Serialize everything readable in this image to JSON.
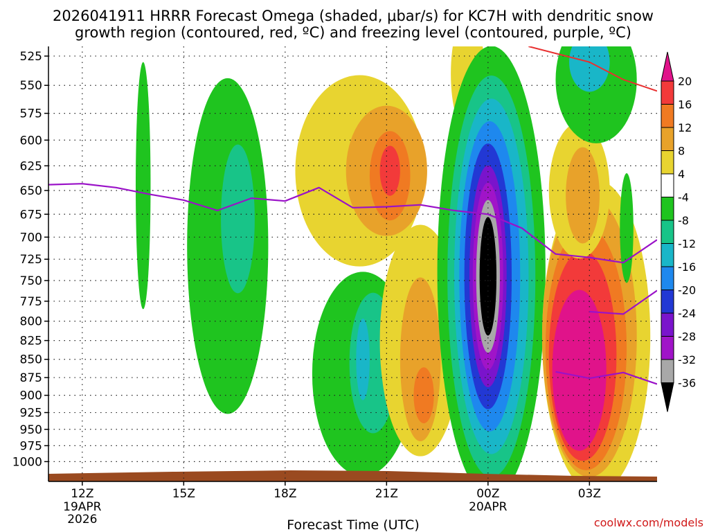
{
  "chart_data": {
    "type": "heatmap",
    "title_line1": "2026041911 HRRR Forecast Omega (shaded, μbar/s) for KC7H with dendritic snow",
    "title_line2": "growth region (contoured, red, ºC) and freezing level (contoured, purple, ºC)",
    "xlabel": "Forecast Time (UTC)",
    "credit": "coolwx.com/models",
    "y_ticks": [
      "525",
      "550",
      "575",
      "600",
      "625",
      "650",
      "675",
      "700",
      "725",
      "750",
      "775",
      "800",
      "825",
      "850",
      "875",
      "900",
      "925",
      "950",
      "975",
      "1000"
    ],
    "y_values": [
      525,
      550,
      575,
      600,
      625,
      650,
      675,
      700,
      725,
      750,
      775,
      800,
      825,
      850,
      875,
      900,
      925,
      950,
      975,
      1000
    ],
    "x_ticks": [
      {
        "hour": 0,
        "label": "12Z",
        "sub1": "19APR",
        "sub2": "2026"
      },
      {
        "hour": 3,
        "label": "15Z",
        "sub1": "",
        "sub2": ""
      },
      {
        "hour": 6,
        "label": "18Z",
        "sub1": "",
        "sub2": ""
      },
      {
        "hour": 9,
        "label": "21Z",
        "sub1": "",
        "sub2": ""
      },
      {
        "hour": 12,
        "label": "00Z",
        "sub1": "20APR",
        "sub2": ""
      },
      {
        "hour": 15,
        "label": "03Z",
        "sub1": "",
        "sub2": ""
      }
    ],
    "x_range": [
      -1,
      17
    ],
    "colorbar_labels": [
      "20",
      "16",
      "12",
      "8",
      "4",
      "-4",
      "-8",
      "-12",
      "-16",
      "-20",
      "-24",
      "-28",
      "-32",
      "-36"
    ],
    "colorbar_colors": [
      "#e0138a",
      "#f23a3a",
      "#f07a22",
      "#e8a22a",
      "#e8d430",
      "#ffffff",
      "#1fc41f",
      "#18c488",
      "#19b6c8",
      "#1e88ee",
      "#2238d4",
      "#7a14cc",
      "#a014c8",
      "#a8a8a8",
      "#000000"
    ],
    "freezing_level": [
      {
        "hour": -1,
        "p": 644
      },
      {
        "hour": 0,
        "p": 643
      },
      {
        "hour": 1,
        "p": 647
      },
      {
        "hour": 2,
        "p": 654
      },
      {
        "hour": 3,
        "p": 660
      },
      {
        "hour": 4,
        "p": 671
      },
      {
        "hour": 5,
        "p": 658
      },
      {
        "hour": 6,
        "p": 661
      },
      {
        "hour": 7,
        "p": 647
      },
      {
        "hour": 8,
        "p": 668
      },
      {
        "hour": 9,
        "p": 667
      },
      {
        "hour": 10,
        "p": 665
      },
      {
        "hour": 11,
        "p": 671
      },
      {
        "hour": 12,
        "p": 675
      },
      {
        "hour": 13,
        "p": 690
      },
      {
        "hour": 14,
        "p": 719
      },
      {
        "hour": 15,
        "p": 723
      },
      {
        "hour": 16,
        "p": 729
      },
      {
        "hour": 17,
        "p": 703
      }
    ],
    "freezing_level_lower": [
      {
        "hour": 14,
        "p": 867
      },
      {
        "hour": 15,
        "p": 876
      },
      {
        "hour": 16,
        "p": 868
      },
      {
        "hour": 17,
        "p": 884
      }
    ],
    "freezing_level_mid": [
      {
        "hour": 15,
        "p": 788
      },
      {
        "hour": 16,
        "p": 791
      },
      {
        "hour": 17,
        "p": 762
      }
    ],
    "dgz_contour": [
      {
        "hour": 13.2,
        "p": 517
      },
      {
        "hour": 15,
        "p": 530
      },
      {
        "hour": 16,
        "p": 545
      },
      {
        "hour": 17,
        "p": 555
      }
    ],
    "omega_regions": [
      {
        "name": "green-strip-1",
        "v": -5,
        "hour": 1.8,
        "p": 645,
        "rh": 0.22,
        "rp": 125
      },
      {
        "name": "green-blob-2",
        "v": -6,
        "hour": 4.3,
        "p": 710,
        "rh": 1.2,
        "rp": 185
      },
      {
        "name": "teal-blob-2",
        "v": -9,
        "hour": 4.6,
        "p": 680,
        "rh": 0.5,
        "rp": 80
      },
      {
        "name": "green-blob-3",
        "v": -6,
        "hour": 8.3,
        "p": 870,
        "rh": 1.5,
        "rp": 140
      },
      {
        "name": "teal-blob-3",
        "v": -9,
        "hour": 8.6,
        "p": 855,
        "rh": 0.7,
        "rp": 95
      },
      {
        "name": "cyan-blob-3",
        "v": -13,
        "hour": 8.3,
        "p": 850,
        "rh": 0.2,
        "rp": 55
      },
      {
        "name": "yellow-arc-1",
        "v": 5,
        "hour": 8.2,
        "p": 630,
        "rh": 1.9,
        "rp": 95
      },
      {
        "name": "yellow-col-2",
        "v": 5,
        "hour": 10,
        "p": 825,
        "rh": 1.2,
        "rp": 150
      },
      {
        "name": "orange-col-2",
        "v": 9,
        "hour": 10,
        "p": 850,
        "rh": 0.6,
        "rp": 110
      },
      {
        "name": "deep-orange-col-2",
        "v": 13,
        "hour": 10.1,
        "p": 900,
        "rh": 0.3,
        "rp": 40
      },
      {
        "name": "goldenrod-blob-1",
        "v": 9,
        "hour": 9,
        "p": 630,
        "rh": 1.2,
        "rp": 65
      },
      {
        "name": "orange-blob-1",
        "v": 13,
        "hour": 9.1,
        "p": 635,
        "rh": 0.6,
        "rp": 45
      },
      {
        "name": "red-blob-1",
        "v": 17,
        "hour": 9.1,
        "p": 630,
        "rh": 0.3,
        "rp": 25
      },
      {
        "name": "yellow-strip-4",
        "v": 5,
        "hour": 11.7,
        "p": 600,
        "rh": 0.5,
        "rp": 80
      },
      {
        "name": "yellow-top",
        "v": 5,
        "hour": 11.4,
        "p": 540,
        "rh": 0.5,
        "rp": 50
      },
      {
        "name": "omega-column-ring-1",
        "v": -6,
        "hour": 12.1,
        "p": 740,
        "rh": 1.6,
        "rp": 255
      },
      {
        "name": "omega-column-ring-2",
        "v": -9,
        "hour": 12.1,
        "p": 745,
        "rh": 1.3,
        "rp": 230
      },
      {
        "name": "omega-column-ring-3",
        "v": -13,
        "hour": 12.1,
        "p": 745,
        "rh": 1.1,
        "rp": 205
      },
      {
        "name": "omega-column-ring-4",
        "v": -17,
        "hour": 12.05,
        "p": 745,
        "rh": 0.9,
        "rp": 180
      },
      {
        "name": "omega-column-ring-5",
        "v": -21,
        "hour": 12.0,
        "p": 745,
        "rh": 0.7,
        "rp": 155
      },
      {
        "name": "omega-column-ring-6",
        "v": -25,
        "hour": 12.0,
        "p": 745,
        "rh": 0.55,
        "rp": 130
      },
      {
        "name": "omega-column-ring-7",
        "v": -29,
        "hour": 12.0,
        "p": 745,
        "rh": 0.45,
        "rp": 110
      },
      {
        "name": "omega-column-ring-8",
        "v": -33,
        "hour": 12.0,
        "p": 745,
        "rh": 0.35,
        "rp": 90
      },
      {
        "name": "omega-column-core",
        "v": -38,
        "hour": 12.0,
        "p": 745,
        "rh": 0.25,
        "rp": 70
      },
      {
        "name": "yellow-ring-5",
        "v": 5,
        "hour": 15.2,
        "p": 820,
        "rh": 1.6,
        "rp": 200
      },
      {
        "name": "goldenrod-ring-5",
        "v": 9,
        "hour": 15.0,
        "p": 820,
        "rh": 1.4,
        "rp": 180
      },
      {
        "name": "orange-ring-5",
        "v": 13,
        "hour": 14.9,
        "p": 835,
        "rh": 1.2,
        "rp": 160
      },
      {
        "name": "red-ring-5",
        "v": 17,
        "hour": 14.8,
        "p": 845,
        "rh": 1.0,
        "rp": 140
      },
      {
        "name": "magenta-core-5",
        "v": 21,
        "hour": 14.7,
        "p": 865,
        "rh": 0.8,
        "rp": 110
      },
      {
        "name": "yellow-upper-6",
        "v": 5,
        "hour": 14.7,
        "p": 650,
        "rh": 0.9,
        "rp": 70
      },
      {
        "name": "orange-upper-6",
        "v": 9,
        "hour": 14.8,
        "p": 655,
        "rh": 0.5,
        "rp": 50
      },
      {
        "name": "green-top-right",
        "v": -6,
        "hour": 15.2,
        "p": 545,
        "rh": 1.2,
        "rp": 55
      },
      {
        "name": "cyan-top-right",
        "v": -13,
        "hour": 15.0,
        "p": 530,
        "rh": 0.6,
        "rp": 25
      },
      {
        "name": "green-right-strip",
        "v": -5,
        "hour": 16.1,
        "p": 690,
        "rh": 0.2,
        "rp": 60
      }
    ]
  }
}
